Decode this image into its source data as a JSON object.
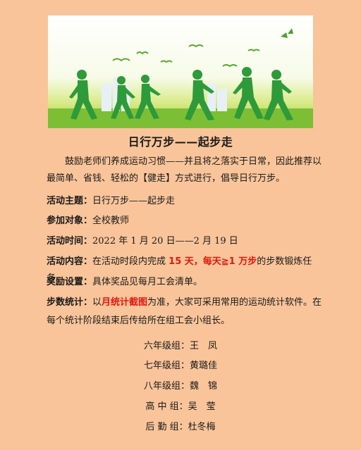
{
  "title": "日行万步——起步走",
  "intro": "鼓励老师们养成运动习惯——并且将之落实于日常，因此推荐以最简单、省钱、轻松的【健走】方式进行，倡导日行万步。",
  "theme": {
    "label": "活动主题：",
    "value": "日行万步——起步走"
  },
  "participants": {
    "label": "参加对象：",
    "value": "全校教师"
  },
  "time": {
    "label": "活动时间：",
    "value": "2022 年 1 月 20 日——2 月 19 日"
  },
  "content": {
    "label": "活动内容：",
    "pre": "在活动时段内完成 ",
    "highlight": "15 天，每天≧1 万步",
    "post": "的步数锻炼任务。"
  },
  "reward": {
    "label": "奖励设置：",
    "value": "具体奖品见每月工会清单。"
  },
  "steps": {
    "label": "步数统计：",
    "pre": "以",
    "highlight": "月统计截图",
    "line1_post": "为准，大家可采用常用的运动统计软件。在",
    "line2": "每个统计阶段结束后传给所在组工会小组长。"
  },
  "groups": [
    "六年级组：王　凤",
    "七年级组：黄璐佳",
    "八年级组：魏　锦",
    "高 中 组：吴　莹",
    "后 勤 组：杜冬梅"
  ],
  "colors": {
    "background": "#f9c49a",
    "highlight": "#e0180e",
    "figure": "#2e9a3a"
  }
}
